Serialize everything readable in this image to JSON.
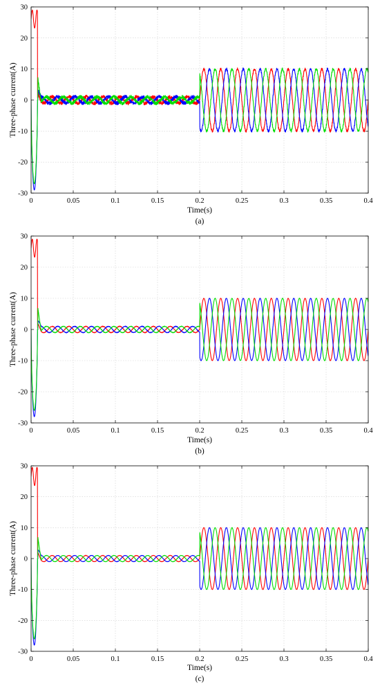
{
  "figure": {
    "panels": [
      {
        "caption": "(a)",
        "xlabel": "Time(s)",
        "ylabel": "Three-phase current(A)"
      },
      {
        "caption": "(b)",
        "xlabel": "Time(s)",
        "ylabel": "Three-phase current(A)"
      },
      {
        "caption": "(c)",
        "xlabel": "Time(s)",
        "ylabel": "Three-phase current(A)"
      }
    ]
  },
  "chart_data": [
    {
      "type": "line",
      "caption": "(a)",
      "xlabel": "Time(s)",
      "ylabel": "Three-phase current(A)",
      "xlim": [
        0,
        0.4
      ],
      "ylim": [
        -30,
        30
      ],
      "xticks": [
        0,
        0.05,
        0.1,
        0.15,
        0.2,
        0.25,
        0.3,
        0.35,
        0.4
      ],
      "yticks": [
        -30,
        -20,
        -10,
        0,
        10,
        20,
        30
      ],
      "grid": true,
      "legend": "none",
      "series_colors": [
        "#ff0000",
        "#0000ff",
        "#00dd00"
      ],
      "frequency_hz": 50,
      "segments": [
        {
          "t_start": 0,
          "t_end": 0.008,
          "description_values": {
            "phase_red_peak": 29,
            "phase_blue_min": -29,
            "phase_green_min": -27
          }
        },
        {
          "t_start": 0.008,
          "t_end": 0.2,
          "amplitude": 1,
          "noise": 0.6
        },
        {
          "t_start": 0.2,
          "t_end": 0.4,
          "amplitude": 10,
          "noise": 0.4
        }
      ]
    },
    {
      "type": "line",
      "caption": "(b)",
      "xlabel": "Time(s)",
      "ylabel": "Three-phase current(A)",
      "xlim": [
        0,
        0.4
      ],
      "ylim": [
        -30,
        30
      ],
      "xticks": [
        0,
        0.05,
        0.1,
        0.15,
        0.2,
        0.25,
        0.3,
        0.35,
        0.4
      ],
      "yticks": [
        -30,
        -20,
        -10,
        0,
        10,
        20,
        30
      ],
      "grid": true,
      "legend": "none",
      "series_colors": [
        "#ff0000",
        "#0000ff",
        "#00dd00"
      ],
      "frequency_hz": 50,
      "segments": [
        {
          "t_start": 0,
          "t_end": 0.008,
          "description_values": {
            "phase_red_peak": 29,
            "phase_blue_min": -28,
            "phase_green_min": -26
          }
        },
        {
          "t_start": 0.008,
          "t_end": 0.2,
          "amplitude": 1,
          "noise": 0.1
        },
        {
          "t_start": 0.2,
          "t_end": 0.4,
          "amplitude": 10,
          "noise": 0.05
        }
      ]
    },
    {
      "type": "line",
      "caption": "(c)",
      "xlabel": "Time(s)",
      "ylabel": "Three-phase current(A)",
      "xlim": [
        0,
        0.4
      ],
      "ylim": [
        -30,
        30
      ],
      "xticks": [
        0,
        0.05,
        0.1,
        0.15,
        0.2,
        0.25,
        0.3,
        0.35,
        0.4
      ],
      "yticks": [
        -30,
        -20,
        -10,
        0,
        10,
        20,
        30
      ],
      "grid": true,
      "legend": "none",
      "series_colors": [
        "#ff0000",
        "#0000ff",
        "#00dd00"
      ],
      "frequency_hz": 50,
      "segments": [
        {
          "t_start": 0,
          "t_end": 0.008,
          "description_values": {
            "phase_red_peak": 29.5,
            "phase_blue_min": -28,
            "phase_green_min": -26
          }
        },
        {
          "t_start": 0.008,
          "t_end": 0.2,
          "amplitude": 1,
          "noise": 0.05
        },
        {
          "t_start": 0.2,
          "t_end": 0.4,
          "amplitude": 10,
          "noise": 0.02
        }
      ]
    }
  ]
}
